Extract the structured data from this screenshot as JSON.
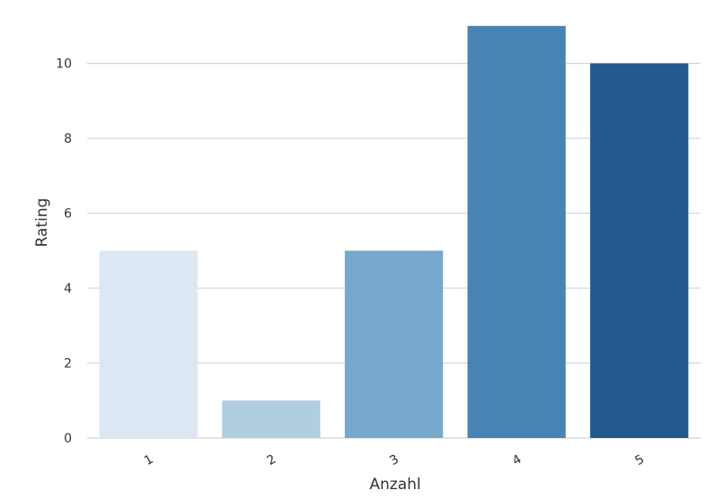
{
  "chart_data": {
    "type": "bar",
    "categories": [
      "1",
      "2",
      "3",
      "4",
      "5"
    ],
    "values": [
      5,
      1,
      5,
      11,
      10
    ],
    "xlabel": "Anzahl",
    "ylabel": "Rating",
    "ylim": [
      0,
      11.5
    ],
    "yticks": [
      0,
      2,
      4,
      6,
      8,
      10
    ],
    "grid": "horizontal",
    "colors": [
      "#dbe7f3",
      "#b1cde0",
      "#75a8ca",
      "#4784b3",
      "#225a8f"
    ]
  }
}
